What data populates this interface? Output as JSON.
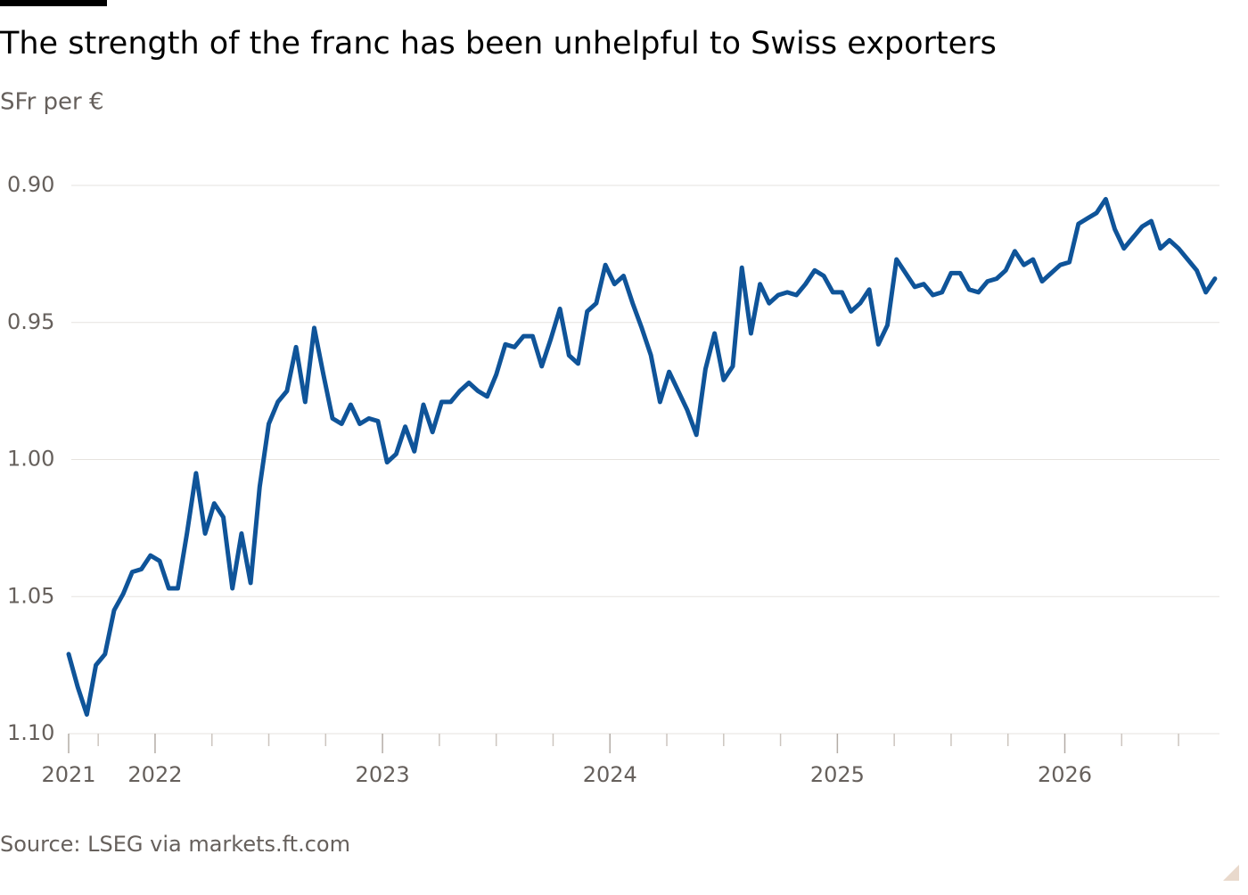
{
  "chart_data": {
    "type": "line",
    "title": "The strength of the franc has been unhelpful to Swiss exporters",
    "subtitle": "SFr per €",
    "source": "Source: LSEG via markets.ft.com",
    "invert_y": true,
    "ylim": [
      1.1,
      0.9
    ],
    "yticks": [
      {
        "value": 0.9,
        "label": "0.90"
      },
      0.95,
      {
        "value": 1,
        "label": "1.00"
      },
      1.05,
      {
        "value": 1.1,
        "label": "1.10"
      }
    ],
    "xlim": [
      2021.62,
      2026.68
    ],
    "xticks": [
      {
        "value": 2021.62,
        "label": "2021"
      },
      2022,
      2023,
      2024,
      2025,
      2026
    ],
    "xminorticks": [
      2021.75,
      2022.25,
      2022.5,
      2022.75,
      2023.25,
      2023.5,
      2023.75,
      2024.25,
      2024.5,
      2024.75,
      2025.25,
      2025.5,
      2025.75,
      2026.25,
      2026.5
    ],
    "grid": true,
    "x": [
      2021.62,
      2021.66,
      2021.7,
      2021.74,
      2021.78,
      2021.82,
      2021.86,
      2021.9,
      2021.94,
      2021.98,
      2022.02,
      2022.06,
      2022.1,
      2022.14,
      2022.18,
      2022.22,
      2022.26,
      2022.3,
      2022.34,
      2022.38,
      2022.42,
      2022.46,
      2022.5,
      2022.54,
      2022.58,
      2022.62,
      2022.66,
      2022.7,
      2022.74,
      2022.78,
      2022.82,
      2022.86,
      2022.9,
      2022.94,
      2022.98,
      2023.02,
      2023.06,
      2023.1,
      2023.14,
      2023.18,
      2023.22,
      2023.26,
      2023.3,
      2023.34,
      2023.38,
      2023.42,
      2023.46,
      2023.5,
      2023.54,
      2023.58,
      2023.62,
      2023.66,
      2023.7,
      2023.74,
      2023.78,
      2023.82,
      2023.86,
      2023.9,
      2023.94,
      2023.98,
      2024.02,
      2024.06,
      2024.1,
      2024.14,
      2024.18,
      2024.22,
      2024.26,
      2024.3,
      2024.34,
      2024.38,
      2024.42,
      2024.46,
      2024.5,
      2024.54,
      2024.58,
      2024.62,
      2024.66,
      2024.7,
      2024.74,
      2024.78,
      2024.82,
      2024.86,
      2024.9,
      2024.94,
      2024.98,
      2025.02,
      2025.06,
      2025.1,
      2025.14,
      2025.18,
      2025.22,
      2025.26,
      2025.3,
      2025.34,
      2025.38,
      2025.42,
      2025.46,
      2025.5,
      2025.54,
      2025.58,
      2025.62,
      2025.66,
      2025.7,
      2025.74,
      2025.78,
      2025.82,
      2025.86,
      2025.9,
      2025.94,
      2025.98,
      2026.02,
      2026.06,
      2026.1,
      2026.14,
      2026.18,
      2026.22,
      2026.26,
      2026.3,
      2026.34,
      2026.38,
      2026.42,
      2026.46,
      2026.5,
      2026.54,
      2026.58,
      2026.62,
      2026.66
    ],
    "series": [
      {
        "name": "SFr per €",
        "color": "#0f5499",
        "values": [
          1.071,
          1.083,
          1.093,
          1.075,
          1.071,
          1.055,
          1.049,
          1.041,
          1.04,
          1.035,
          1.037,
          1.047,
          1.047,
          1.027,
          1.005,
          1.027,
          1.016,
          1.021,
          1.047,
          1.027,
          1.045,
          1.01,
          0.987,
          0.979,
          0.975,
          0.959,
          0.979,
          0.952,
          0.969,
          0.985,
          0.987,
          0.98,
          0.987,
          0.985,
          0.986,
          1.001,
          0.998,
          0.988,
          0.997,
          0.98,
          0.99,
          0.979,
          0.979,
          0.975,
          0.972,
          0.975,
          0.977,
          0.969,
          0.958,
          0.959,
          0.955,
          0.955,
          0.966,
          0.956,
          0.945,
          0.962,
          0.965,
          0.946,
          0.943,
          0.929,
          0.936,
          0.933,
          0.943,
          0.952,
          0.962,
          0.979,
          0.968,
          0.975,
          0.982,
          0.991,
          0.967,
          0.954,
          0.971,
          0.966,
          0.93,
          0.954,
          0.936,
          0.943,
          0.94,
          0.939,
          0.94,
          0.936,
          0.931,
          0.933,
          0.939,
          0.939,
          0.946,
          0.943,
          0.938,
          0.958,
          0.951,
          0.927,
          0.932,
          0.937,
          0.936,
          0.94,
          0.939,
          0.932,
          0.932,
          0.938,
          0.939,
          0.935,
          0.934,
          0.931,
          0.924,
          0.929,
          0.927,
          0.935,
          0.932,
          0.929,
          0.928,
          0.914,
          0.912,
          0.91,
          0.905,
          0.916,
          0.923,
          0.919,
          0.915,
          0.913,
          0.923,
          0.92,
          0.923,
          0.927,
          0.931,
          0.939,
          0.934
        ]
      }
    ]
  }
}
